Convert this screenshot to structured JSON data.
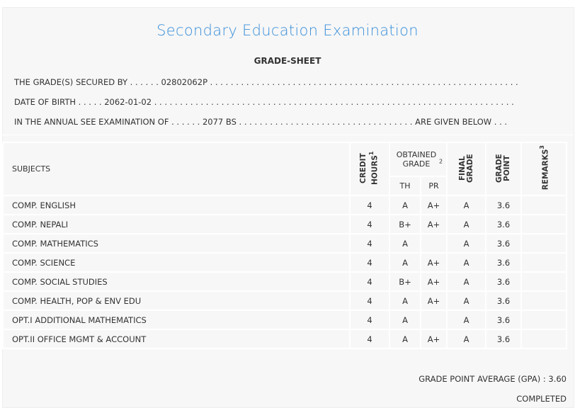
{
  "title": "Secondary Education Examination",
  "subtitle": "GRADE-SHEET",
  "info": {
    "secured_by": "THE GRADE(S) SECURED BY . . . . . . 02802062P . . . . . . . . . . . . . . . . . . . . . . . . . . . . . . . . . . . . . . . . . . . . . . . . . . . . . . . . . . . .",
    "dob": "DATE OF BIRTH . . . . . 2062-01-02 . . . . . . . . . . . . . . . . . . . . . . . . . . . . . . . . . . . . . . . . . . . . . . . . . . . . . . . . . . . . . . . . . . . . . .",
    "exam": "IN THE ANNUAL SEE EXAMINATION OF . . . . . . 2077 BS . . . . . . . . . . . . . . . . . . . . . . . . . . . . . . . . . . ARE GIVEN BELOW . . ."
  },
  "headers": {
    "subjects": "SUBJECTS",
    "credit": "CREDIT HOURS",
    "credit_sup": "1",
    "obtained": "OBTAINED GRADE",
    "obtained_sup": "2",
    "th": "TH",
    "pr": "PR",
    "final": "FINAL GRADE",
    "gp": "GRADE POINT",
    "remarks": "REMARKS",
    "remarks_sup": "3"
  },
  "rows": [
    {
      "subject": "COMP. ENGLISH",
      "credit": "4",
      "th": "A",
      "pr": "A+",
      "final": "A",
      "gp": "3.6",
      "remarks": ""
    },
    {
      "subject": "COMP. NEPALI",
      "credit": "4",
      "th": "B+",
      "pr": "A+",
      "final": "A",
      "gp": "3.6",
      "remarks": ""
    },
    {
      "subject": "COMP. MATHEMATICS",
      "credit": "4",
      "th": "A",
      "pr": "",
      "final": "A",
      "gp": "3.6",
      "remarks": ""
    },
    {
      "subject": "COMP. SCIENCE",
      "credit": "4",
      "th": "A",
      "pr": "A+",
      "final": "A",
      "gp": "3.6",
      "remarks": ""
    },
    {
      "subject": "COMP. SOCIAL STUDIES",
      "credit": "4",
      "th": "B+",
      "pr": "A+",
      "final": "A",
      "gp": "3.6",
      "remarks": ""
    },
    {
      "subject": "COMP. HEALTH, POP & ENV EDU",
      "credit": "4",
      "th": "A",
      "pr": "A+",
      "final": "A",
      "gp": "3.6",
      "remarks": ""
    },
    {
      "subject": "OPT.I ADDITIONAL MATHEMATICS",
      "credit": "4",
      "th": "A",
      "pr": "",
      "final": "A",
      "gp": "3.6",
      "remarks": ""
    },
    {
      "subject": "OPT.II OFFICE MGMT & ACCOUNT",
      "credit": "4",
      "th": "A",
      "pr": "A+",
      "final": "A",
      "gp": "3.6",
      "remarks": ""
    }
  ],
  "gpa": "GRADE POINT AVERAGE (GPA) : 3.60",
  "status": "COMPLETED"
}
